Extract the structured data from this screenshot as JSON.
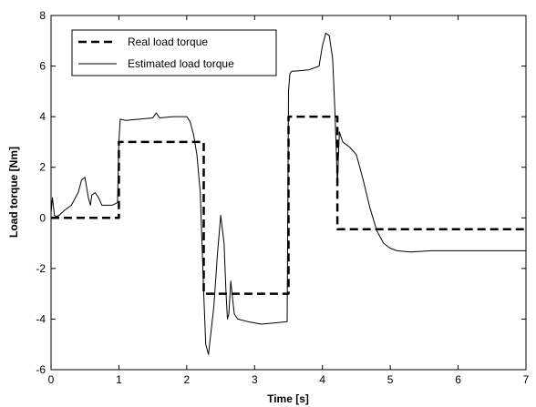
{
  "chart_data": {
    "type": "line",
    "title": "",
    "xlabel": "Time [s]",
    "ylabel": "Load torque [Nm]",
    "xlim": [
      0,
      7
    ],
    "ylim": [
      -6,
      8
    ],
    "xticks": [
      "0",
      "1",
      "2",
      "3",
      "4",
      "5",
      "6",
      "7"
    ],
    "yticks": [
      "-6",
      "-4",
      "-2",
      "0",
      "2",
      "4",
      "6",
      "8"
    ],
    "grid": false,
    "legend_position": "top-left",
    "series": [
      {
        "name": "Real load torque",
        "style": "dashed",
        "color": "#000000",
        "x": [
          0,
          1.0,
          1.0,
          2.25,
          2.25,
          3.5,
          3.5,
          4.22,
          4.22,
          7.0
        ],
        "y": [
          0,
          0,
          3.0,
          3.0,
          -3.0,
          -3.0,
          4.0,
          4.0,
          -0.45,
          -0.45
        ]
      },
      {
        "name": "Estimated load torque",
        "style": "solid",
        "color": "#000000",
        "x": [
          0,
          0.02,
          0.05,
          0.08,
          0.12,
          0.2,
          0.3,
          0.4,
          0.45,
          0.5,
          0.55,
          0.58,
          0.6,
          0.65,
          0.7,
          0.75,
          0.8,
          0.9,
          0.98,
          1.0,
          1.02,
          1.1,
          1.3,
          1.5,
          1.55,
          1.6,
          1.8,
          2.0,
          2.05,
          2.1,
          2.15,
          2.2,
          2.25,
          2.28,
          2.32,
          2.4,
          2.45,
          2.5,
          2.55,
          2.58,
          2.6,
          2.62,
          2.65,
          2.68,
          2.7,
          2.75,
          2.9,
          3.1,
          3.3,
          3.48,
          3.5,
          3.52,
          3.55,
          3.6,
          3.8,
          3.95,
          4.0,
          4.05,
          4.1,
          4.15,
          4.18,
          4.2,
          4.22,
          4.25,
          4.3,
          4.35,
          4.4,
          4.5,
          4.6,
          4.7,
          4.8,
          4.9,
          5.0,
          5.1,
          5.3,
          5.6,
          6.0,
          6.5,
          7.0
        ],
        "y": [
          0.2,
          0.8,
          0.1,
          0.05,
          0.1,
          0.3,
          0.5,
          1.0,
          1.5,
          1.6,
          0.8,
          0.5,
          0.9,
          1.0,
          0.8,
          0.5,
          0.5,
          0.5,
          0.6,
          3.0,
          3.9,
          3.85,
          3.9,
          3.95,
          4.15,
          3.95,
          4.0,
          4.0,
          3.8,
          3.3,
          2.5,
          1.0,
          -3.0,
          -5.0,
          -5.4,
          -3.5,
          -1.5,
          0.1,
          -1.0,
          -3.0,
          -4.0,
          -3.8,
          -2.5,
          -3.3,
          -3.8,
          -4.0,
          -4.1,
          -4.2,
          -4.15,
          -4.1,
          5.0,
          5.7,
          5.8,
          5.8,
          5.85,
          6.0,
          6.8,
          7.3,
          7.2,
          6.3,
          4.5,
          3.0,
          1.3,
          3.4,
          3.0,
          2.9,
          2.8,
          2.5,
          1.5,
          0.4,
          -0.5,
          -1.0,
          -1.2,
          -1.3,
          -1.35,
          -1.3,
          -1.3,
          -1.3,
          -1.3
        ]
      }
    ]
  }
}
